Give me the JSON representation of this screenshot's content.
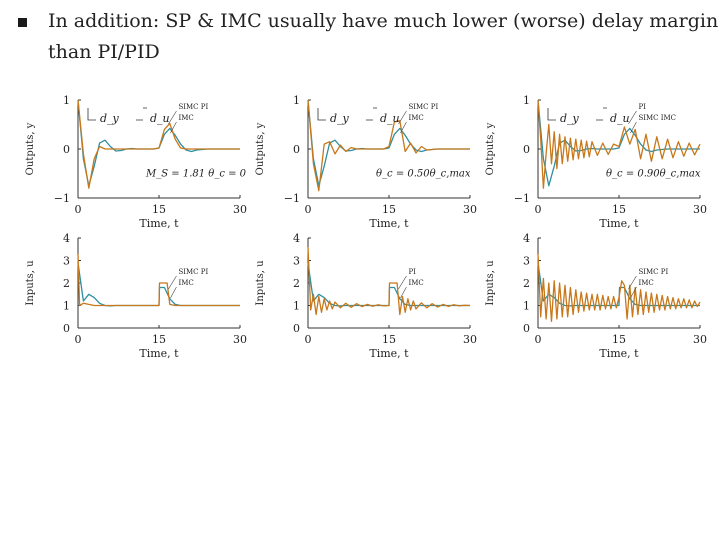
{
  "slide": {
    "bullet_text_line1": "In addition: SP & IMC usually have much lower (worse) delay margin",
    "bullet_text_line2": "than PI/PID"
  },
  "colors": {
    "blue": "#2f8fa0",
    "orange": "#c8781a",
    "axis": "#333333"
  },
  "chart_data": [
    {
      "type": "line",
      "id": "top-left",
      "xlabel": "Time, t",
      "ylabel": "Outputs, y",
      "xlim": [
        0,
        30
      ],
      "ylim": [
        -1,
        1
      ],
      "xticks": [
        "0",
        "15",
        "30"
      ],
      "yticks": [
        "−1",
        "0",
        "1"
      ],
      "legend": [
        "SIMC PI",
        "IMC"
      ],
      "disturbance_labels": [
        "d_y",
        "d_u"
      ],
      "annotation": "M_S = 1.81  θ_c = 0",
      "series": [
        {
          "name": "SIMC PI",
          "x": [
            0,
            1,
            2,
            3,
            4,
            5,
            6,
            7,
            8,
            9,
            10,
            11,
            12,
            13,
            14,
            15,
            16,
            17,
            18,
            19,
            20,
            21,
            22,
            24,
            26,
            28,
            30
          ],
          "y": [
            1,
            -0.2,
            -0.75,
            -0.35,
            0.12,
            0.18,
            0.05,
            -0.04,
            -0.03,
            0,
            0.01,
            0,
            0,
            0,
            0,
            0.02,
            0.3,
            0.42,
            0.28,
            0.1,
            -0.02,
            -0.05,
            -0.02,
            0,
            0,
            0,
            0
          ]
        },
        {
          "name": "IMC",
          "x": [
            0,
            1,
            2,
            3,
            4,
            5,
            6,
            7,
            8,
            9,
            10,
            11,
            12,
            13,
            14,
            15,
            16,
            17,
            18,
            19,
            20,
            21,
            22,
            24,
            26,
            28,
            30
          ],
          "y": [
            1,
            -0.1,
            -0.8,
            -0.2,
            0.05,
            0,
            0,
            0,
            0,
            0,
            0,
            0,
            0,
            0,
            0,
            0.02,
            0.4,
            0.52,
            0.2,
            0.02,
            0,
            0,
            0,
            0,
            0,
            0,
            0
          ]
        }
      ]
    },
    {
      "type": "line",
      "id": "top-middle",
      "xlabel": "Time, t",
      "ylabel": "Outputs, y",
      "xlim": [
        0,
        30
      ],
      "ylim": [
        -1,
        1
      ],
      "xticks": [
        "0",
        "15",
        "30"
      ],
      "yticks": [
        "−1",
        "0",
        "1"
      ],
      "legend": [
        "SIMC PI",
        "IMC"
      ],
      "disturbance_labels": [
        "d_y",
        "d_u"
      ],
      "annotation": "θ_c = 0.50θ_c,max",
      "series": [
        {
          "name": "SIMC PI",
          "x": [
            0,
            1,
            2,
            3,
            4,
            5,
            6,
            7,
            8,
            9,
            10,
            11,
            12,
            13,
            14,
            15,
            16,
            17,
            18,
            19,
            20,
            21,
            22,
            24,
            26,
            28,
            30
          ],
          "y": [
            1,
            -0.2,
            -0.75,
            -0.35,
            0.12,
            0.18,
            0.05,
            -0.04,
            -0.03,
            0,
            0.01,
            0,
            0,
            0,
            0,
            0.02,
            0.3,
            0.42,
            0.28,
            0.1,
            -0.02,
            -0.05,
            -0.02,
            0,
            0,
            0,
            0
          ]
        },
        {
          "name": "IMC",
          "x": [
            0,
            1,
            2,
            3,
            4,
            5,
            6,
            7,
            8,
            9,
            10,
            11,
            12,
            13,
            14,
            15,
            16,
            17,
            18,
            19,
            20,
            21,
            22,
            24,
            26,
            28,
            30
          ],
          "y": [
            1,
            -0.3,
            -0.85,
            0.1,
            0.15,
            -0.1,
            0.08,
            -0.05,
            0.03,
            0,
            0,
            0,
            0,
            0,
            0,
            0.05,
            0.55,
            0.58,
            -0.05,
            0.12,
            -0.08,
            0.05,
            -0.02,
            0,
            0,
            0,
            0
          ]
        }
      ]
    },
    {
      "type": "line",
      "id": "top-right",
      "xlabel": "Time, t",
      "ylabel": "Outputs, y",
      "xlim": [
        0,
        30
      ],
      "ylim": [
        -1,
        1
      ],
      "xticks": [
        "0",
        "15",
        "30"
      ],
      "yticks": [
        "−1",
        "0",
        "1"
      ],
      "legend": [
        "PI",
        "SIMC IMC"
      ],
      "disturbance_labels": [
        "d_y",
        "d_u"
      ],
      "annotation": "θ_c = 0.90θ_c,max",
      "series": [
        {
          "name": "PI",
          "x": [
            0,
            1,
            2,
            3,
            4,
            5,
            6,
            7,
            8,
            9,
            10,
            11,
            12,
            13,
            14,
            15,
            16,
            17,
            18,
            19,
            20,
            21,
            22,
            24,
            26,
            28,
            30
          ],
          "y": [
            1,
            -0.2,
            -0.75,
            -0.35,
            0.12,
            0.18,
            0.05,
            -0.04,
            -0.03,
            0,
            0.01,
            0,
            0,
            0,
            0,
            0.02,
            0.3,
            0.42,
            0.28,
            0.1,
            -0.02,
            -0.05,
            -0.02,
            0,
            0,
            0,
            0
          ]
        },
        {
          "name": "SIMC IMC",
          "x": [
            0,
            0.5,
            1,
            1.5,
            2,
            2.5,
            3,
            3.5,
            4,
            4.5,
            5,
            5.5,
            6,
            6.5,
            7,
            7.5,
            8,
            8.5,
            9,
            9.5,
            10,
            11,
            12,
            13,
            14,
            15,
            16,
            17,
            18,
            19,
            20,
            21,
            22,
            23,
            24,
            25,
            26,
            27,
            28,
            29,
            30
          ],
          "y": [
            1,
            0.2,
            -0.8,
            -0.1,
            0.5,
            -0.3,
            0.35,
            -0.4,
            0.3,
            -0.3,
            0.25,
            -0.25,
            0.22,
            -0.22,
            0.2,
            -0.2,
            0.18,
            -0.18,
            0.16,
            -0.16,
            0.15,
            -0.13,
            0.12,
            -0.11,
            0.1,
            0.05,
            0.45,
            0.1,
            0.4,
            -0.2,
            0.3,
            -0.25,
            0.25,
            -0.2,
            0.2,
            -0.18,
            0.15,
            -0.15,
            0.12,
            -0.12,
            0.1
          ]
        }
      ]
    },
    {
      "type": "line",
      "id": "bottom-left",
      "xlabel": "Time, t",
      "ylabel": "Inputs, u",
      "xlim": [
        0,
        30
      ],
      "ylim": [
        0,
        4
      ],
      "xticks": [
        "0",
        "15",
        "30"
      ],
      "yticks": [
        "0",
        "1",
        "2",
        "3",
        "4"
      ],
      "legend": [
        "SIMC PI",
        "IMC"
      ],
      "series": [
        {
          "name": "SIMC PI",
          "x": [
            0,
            1,
            2,
            3,
            4,
            5,
            6,
            7,
            8,
            10,
            12,
            14,
            15,
            15.1,
            16,
            17,
            18,
            19,
            20,
            22,
            24,
            26,
            28,
            30
          ],
          "y": [
            2.9,
            1.2,
            1.5,
            1.35,
            1.1,
            1.0,
            0.98,
            1.0,
            1.0,
            1.0,
            1.0,
            1.0,
            1.0,
            1.8,
            1.8,
            1.3,
            1.05,
            1.0,
            1.0,
            1.0,
            1.0,
            1.0,
            1.0,
            1.0
          ]
        },
        {
          "name": "IMC",
          "x": [
            0,
            0.3,
            1,
            2,
            3,
            4,
            6,
            8,
            10,
            12,
            14,
            15,
            15.1,
            16,
            16.5,
            17,
            18,
            20,
            22,
            24,
            26,
            28,
            30
          ],
          "y": [
            3.3,
            1.0,
            1.1,
            1.05,
            1.0,
            1.0,
            1.0,
            1.0,
            1.0,
            1.0,
            1.0,
            1.0,
            2.0,
            2.0,
            2.0,
            1.05,
            1.0,
            1.0,
            1.0,
            1.0,
            1.0,
            1.0,
            1.0
          ]
        }
      ]
    },
    {
      "type": "line",
      "id": "bottom-middle",
      "xlabel": "Time, t",
      "ylabel": "Inputs, u",
      "xlim": [
        0,
        30
      ],
      "ylim": [
        0,
        4
      ],
      "xticks": [
        "0",
        "15",
        "30"
      ],
      "yticks": [
        "0",
        "1",
        "2",
        "3",
        "4"
      ],
      "legend": [
        "PI",
        "IMC"
      ],
      "series": [
        {
          "name": "PI",
          "x": [
            0,
            1,
            2,
            3,
            4,
            5,
            6,
            7,
            8,
            10,
            12,
            14,
            15,
            15.1,
            16,
            17,
            18,
            19,
            20,
            22,
            24,
            26,
            28,
            30
          ],
          "y": [
            2.9,
            1.2,
            1.5,
            1.35,
            1.1,
            1.0,
            0.98,
            1.0,
            1.0,
            1.0,
            1.0,
            1.0,
            1.0,
            1.8,
            1.8,
            1.3,
            1.05,
            1.0,
            1.0,
            1.0,
            1.0,
            1.0,
            1.0,
            1.0
          ]
        },
        {
          "name": "IMC",
          "x": [
            0,
            0.5,
            1,
            1.5,
            2,
            2.5,
            3,
            3.5,
            4,
            4.5,
            5,
            6,
            7,
            8,
            9,
            10,
            11,
            12,
            13,
            14,
            15,
            15.1,
            16,
            16.5,
            17,
            17.5,
            18,
            18.5,
            19,
            19.5,
            20,
            21,
            22,
            23,
            24,
            25,
            26,
            27,
            28,
            29,
            30
          ],
          "y": [
            3.6,
            0.8,
            1.5,
            0.6,
            1.4,
            0.7,
            1.3,
            0.8,
            1.2,
            0.85,
            1.15,
            0.9,
            1.1,
            0.92,
            1.08,
            0.95,
            1.05,
            0.97,
            1.03,
            0.98,
            1.0,
            2.0,
            2.0,
            2.0,
            0.6,
            1.4,
            0.7,
            1.3,
            0.8,
            1.2,
            0.85,
            1.12,
            0.9,
            1.08,
            0.93,
            1.05,
            0.96,
            1.03,
            0.98,
            1.01,
            1.0
          ]
        }
      ]
    },
    {
      "type": "line",
      "id": "bottom-right",
      "xlabel": "Time, t",
      "ylabel": "Inputs, u",
      "xlim": [
        0,
        30
      ],
      "ylim": [
        0,
        4
      ],
      "xticks": [
        "0",
        "15",
        "30"
      ],
      "yticks": [
        "0",
        "1",
        "2",
        "3",
        "4"
      ],
      "legend": [
        "SIMC PI",
        "IMC"
      ],
      "series": [
        {
          "name": "SIMC PI",
          "x": [
            0,
            1,
            2,
            3,
            4,
            5,
            6,
            7,
            8,
            10,
            12,
            14,
            15,
            15.1,
            16,
            17,
            18,
            19,
            20,
            22,
            24,
            26,
            28,
            30
          ],
          "y": [
            2.9,
            1.2,
            1.5,
            1.35,
            1.1,
            1.0,
            0.98,
            1.0,
            1.0,
            1.0,
            1.0,
            1.0,
            1.0,
            1.8,
            1.8,
            1.3,
            1.05,
            1.0,
            1.0,
            1.0,
            1.0,
            1.0,
            1.0,
            1.0
          ]
        },
        {
          "name": "IMC",
          "x": [
            0,
            0.5,
            1,
            1.5,
            2,
            2.5,
            3,
            3.5,
            4,
            4.5,
            5,
            5.5,
            6,
            6.5,
            7,
            7.5,
            8,
            8.5,
            9,
            9.5,
            10,
            10.5,
            11,
            11.5,
            12,
            12.5,
            13,
            13.5,
            14,
            14.5,
            15,
            15.5,
            16,
            16.5,
            17,
            17.5,
            18,
            18.5,
            19,
            19.5,
            20,
            20.5,
            21,
            21.5,
            22,
            22.5,
            23,
            23.5,
            24,
            24.5,
            25,
            25.5,
            26,
            26.5,
            27,
            27.5,
            28,
            28.5,
            29,
            29.5,
            30
          ],
          "y": [
            3.3,
            0.5,
            2.2,
            0.4,
            2.0,
            0.3,
            2.1,
            0.4,
            2.0,
            0.5,
            1.9,
            0.5,
            1.8,
            0.6,
            1.7,
            0.7,
            1.6,
            0.75,
            1.55,
            0.8,
            1.5,
            0.8,
            1.5,
            0.8,
            1.45,
            0.85,
            1.4,
            0.85,
            1.4,
            0.9,
            1.35,
            2.1,
            1.9,
            0.4,
            1.9,
            0.5,
            1.8,
            0.6,
            1.7,
            0.6,
            1.6,
            0.7,
            1.55,
            0.7,
            1.5,
            0.8,
            1.45,
            0.8,
            1.4,
            0.85,
            1.35,
            0.85,
            1.3,
            0.9,
            1.3,
            0.9,
            1.25,
            0.9,
            1.2,
            0.95,
            1.15
          ]
        }
      ]
    }
  ]
}
